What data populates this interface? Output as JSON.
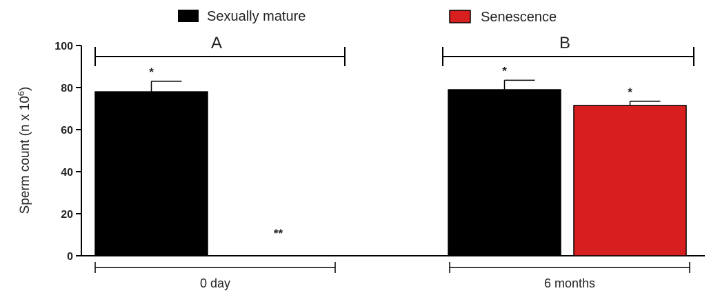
{
  "chart_data": {
    "type": "bar",
    "ylabel": "Sperm count (n x 10",
    "ylabel_sup": "6",
    "ylabel_close": ")",
    "ylim": [
      0,
      100
    ],
    "yticks": [
      "0",
      "20",
      "40",
      "60",
      "80",
      "100"
    ],
    "categories": [
      "0 day",
      "6 months"
    ],
    "group_letters": [
      "A",
      "B"
    ],
    "legend": {
      "placement": "top"
    },
    "series": [
      {
        "name": "Sexually mature",
        "color": "#000000",
        "values": [
          78,
          79
        ],
        "errors": [
          5,
          4.5
        ],
        "markers": [
          "*",
          "*"
        ]
      },
      {
        "name": "Senescence",
        "color": "#d71f1f",
        "values": [
          0,
          71.5
        ],
        "errors": [
          0,
          2
        ],
        "markers": [
          "**",
          "*"
        ]
      }
    ]
  }
}
